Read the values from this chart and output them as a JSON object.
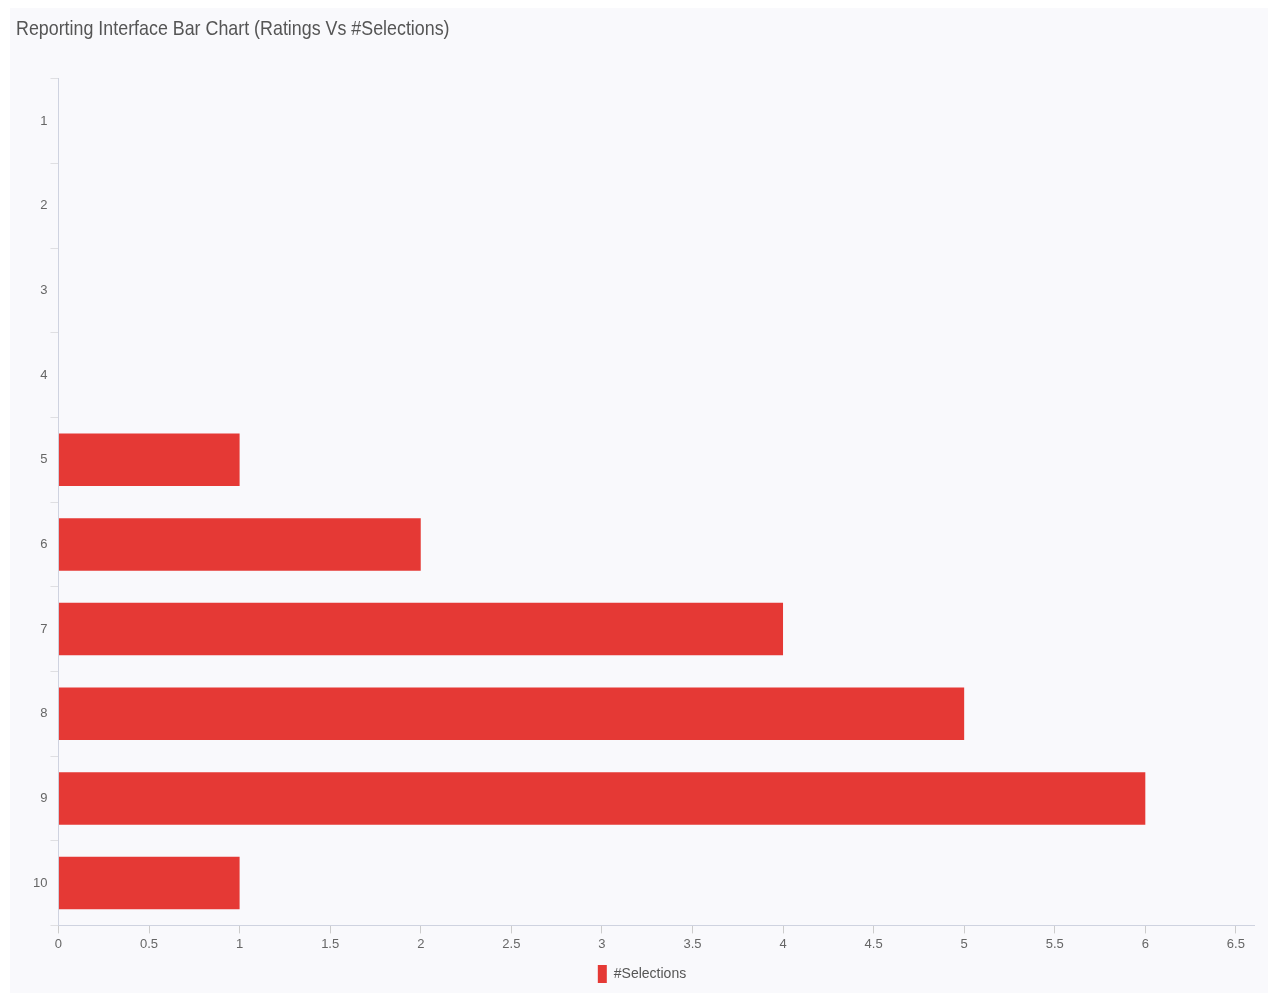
{
  "chart_data": {
    "type": "bar",
    "orientation": "horizontal",
    "title": "Reporting Interface Bar Chart (Ratings Vs #Selections)",
    "categories": [
      "1",
      "2",
      "3",
      "4",
      "5",
      "6",
      "7",
      "8",
      "9",
      "10"
    ],
    "series": [
      {
        "name": "#Selections",
        "color": "#e53935",
        "values": [
          0,
          0,
          0,
          0,
          1,
          2,
          4,
          5,
          6,
          1
        ]
      }
    ],
    "xlim": [
      0,
      6.6
    ],
    "xticks": [
      0,
      0.5,
      1,
      1.5,
      2,
      2.5,
      3,
      3.5,
      4,
      4.5,
      5,
      5.5,
      6,
      6.5
    ],
    "grid": false,
    "legend": "bottom"
  }
}
